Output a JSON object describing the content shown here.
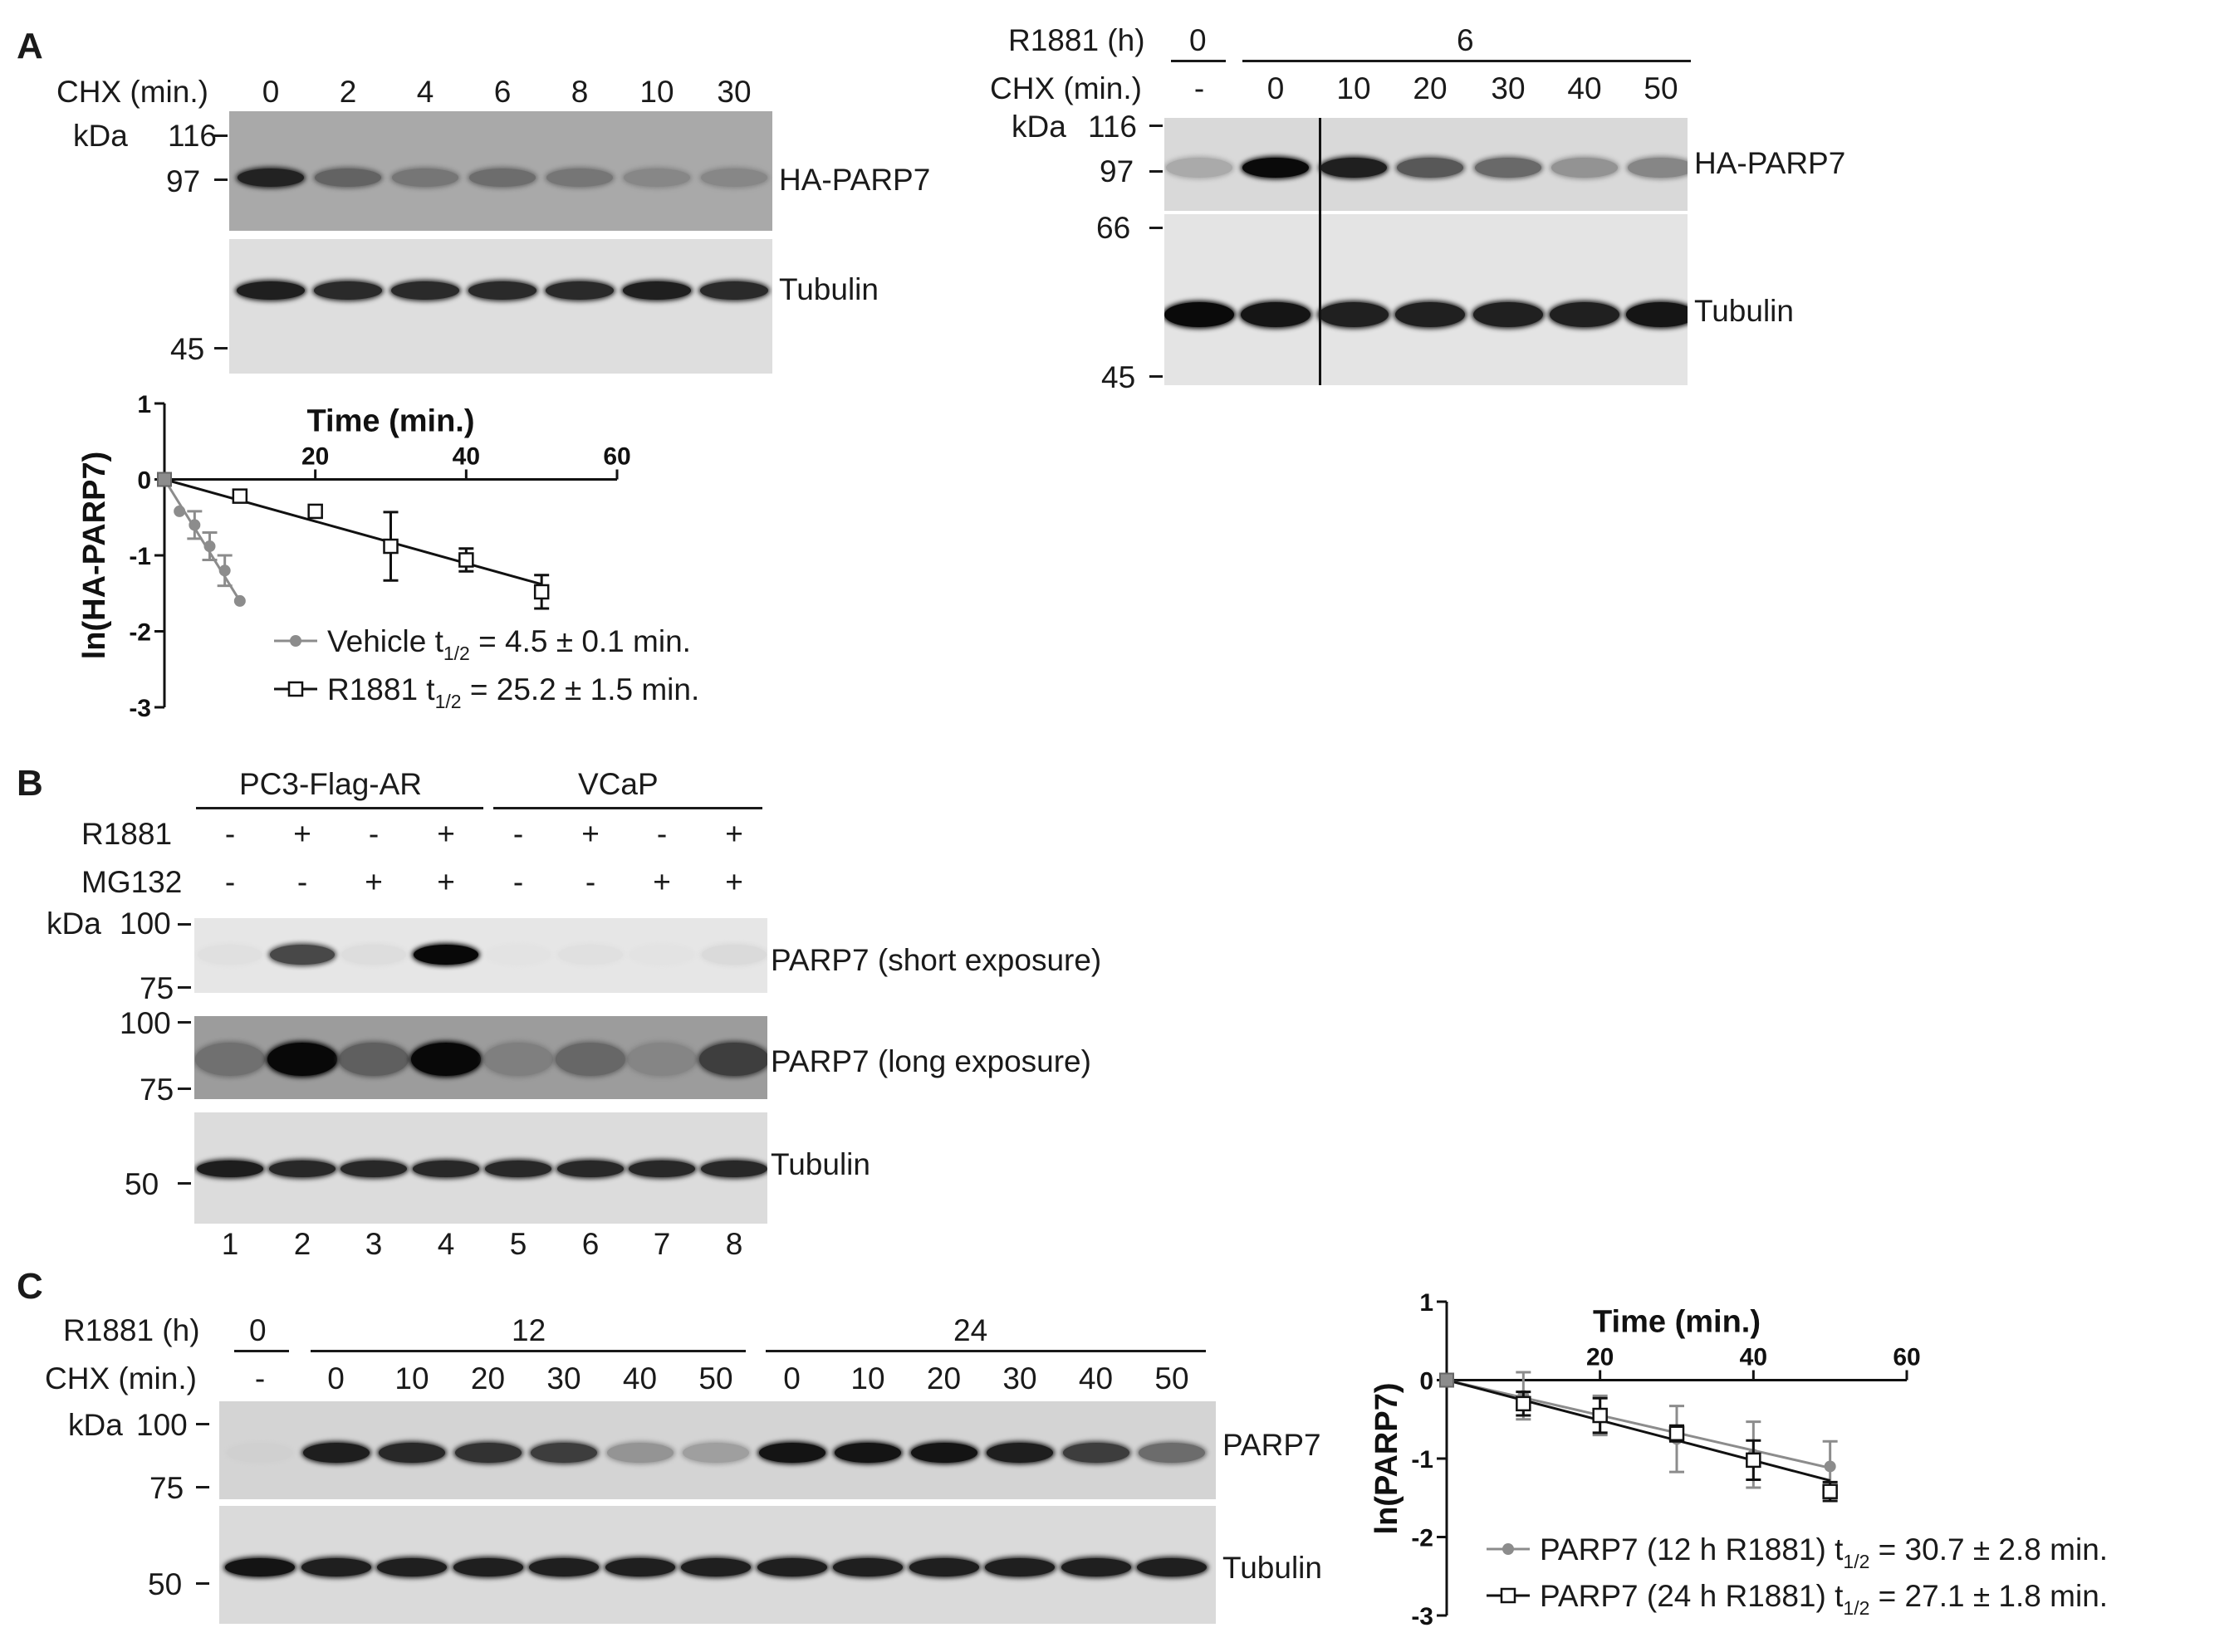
{
  "panel_labels": [
    "A",
    "B",
    "C"
  ],
  "panelA": {
    "left_blot": {
      "treatment_label": "CHX (min.)",
      "lanes": [
        "0",
        "2",
        "4",
        "6",
        "8",
        "10",
        "30"
      ],
      "kda_label": "kDa",
      "markers": [
        "116",
        "97",
        "45"
      ],
      "band_labels": [
        "HA-PARP7",
        "Tubulin"
      ],
      "parp7_intensity": [
        0.85,
        0.55,
        0.45,
        0.5,
        0.45,
        0.35,
        0.35
      ],
      "tubulin_intensity": [
        0.9,
        0.85,
        0.85,
        0.85,
        0.85,
        0.9,
        0.85
      ]
    },
    "right_blot": {
      "r1881_label": "R1881 (h)",
      "r1881_groups": [
        "0",
        "6"
      ],
      "treatment_label": "CHX (min.)",
      "lanes": [
        "-",
        "0",
        "10",
        "20",
        "30",
        "40",
        "50"
      ],
      "kda_label": "kDa",
      "markers": [
        "116",
        "97",
        "66",
        "45"
      ],
      "band_labels": [
        "HA-PARP7",
        "Tubulin"
      ],
      "parp7_intensity": [
        0.35,
        1.0,
        0.9,
        0.65,
        0.6,
        0.45,
        0.5
      ],
      "tubulin_intensity": [
        1.0,
        0.95,
        0.9,
        0.9,
        0.9,
        0.9,
        0.95
      ]
    }
  },
  "chartA": {
    "chart_data": {
      "type": "scatter",
      "xlabel": "Time (min.)",
      "ylabel": "ln(HA-PARP7)",
      "xlim": [
        0,
        60
      ],
      "ylim": [
        -3,
        1
      ],
      "xticks": [
        "20",
        "40",
        "60"
      ],
      "yticks": [
        "1",
        "0",
        "-1",
        "-2",
        "-3"
      ],
      "legend_position": "bottom-right",
      "series": [
        {
          "name": "Vehicle",
          "legend_prefix": "Vehicle t",
          "legend_sub": "1/2",
          "legend_suffix": " = 4.5 ± 0.1 min.",
          "color": "#8c8c8c",
          "marker": "circle",
          "x": [
            0,
            2,
            4,
            6,
            8,
            10
          ],
          "y": [
            0,
            -0.42,
            -0.6,
            -0.88,
            -1.2,
            -1.6
          ],
          "err": [
            0,
            0,
            0.18,
            0.18,
            0.2,
            0
          ],
          "fit": [
            [
              0,
              0
            ],
            [
              10,
              -1.6
            ]
          ]
        },
        {
          "name": "R1881",
          "legend_prefix": "R1881 t",
          "legend_sub": "1/2",
          "legend_suffix": " = 25.2 ± 1.5 min.",
          "color": "#111111",
          "marker": "square",
          "x": [
            0,
            10,
            20,
            30,
            40,
            50
          ],
          "y": [
            0,
            -0.22,
            -0.42,
            -0.88,
            -1.06,
            -1.48
          ],
          "err": [
            0,
            0,
            0.08,
            0.45,
            0.15,
            0.22
          ],
          "fit": [
            [
              0,
              0
            ],
            [
              50,
              -1.38
            ]
          ]
        }
      ]
    }
  },
  "panelB": {
    "groups": [
      "PC3-Flag-AR",
      "VCaP"
    ],
    "row_labels": [
      "R1881",
      "MG132"
    ],
    "r1881": [
      "-",
      "+",
      "-",
      "+",
      "-",
      "+",
      "-",
      "+"
    ],
    "mg132": [
      "-",
      "-",
      "+",
      "+",
      "-",
      "-",
      "+",
      "+"
    ],
    "kda_label": "kDa",
    "short_markers": [
      "100",
      "75"
    ],
    "long_markers": [
      "100",
      "75"
    ],
    "tub_markers": [
      "50"
    ],
    "band_labels": [
      "PARP7 (short exposure)",
      "PARP7 (long exposure)",
      "Tubulin"
    ],
    "lane_numbers": [
      "1",
      "2",
      "3",
      "4",
      "5",
      "6",
      "7",
      "8"
    ],
    "short_intensity": [
      0.08,
      0.75,
      0.12,
      1.0,
      0.05,
      0.08,
      0.05,
      0.15
    ],
    "long_intensity": [
      0.45,
      1.0,
      0.55,
      1.0,
      0.35,
      0.5,
      0.3,
      0.7
    ],
    "tubulin_intensity": [
      0.9,
      0.85,
      0.85,
      0.85,
      0.85,
      0.85,
      0.85,
      0.85
    ]
  },
  "panelC": {
    "blot": {
      "r1881_label": "R1881 (h)",
      "r1881_groups": [
        "0",
        "12",
        "24"
      ],
      "treatment_label": "CHX (min.)",
      "lanes": [
        "-",
        "0",
        "10",
        "20",
        "30",
        "40",
        "50",
        "0",
        "10",
        "20",
        "30",
        "40",
        "50"
      ],
      "kda_label": "kDa",
      "markers": [
        "100",
        "75",
        "50"
      ],
      "band_labels": [
        "PARP7",
        "Tubulin"
      ],
      "parp7_intensity": [
        0.05,
        0.9,
        0.85,
        0.8,
        0.75,
        0.45,
        0.4,
        0.95,
        0.95,
        0.95,
        0.9,
        0.75,
        0.6
      ],
      "tubulin_intensity": [
        0.95,
        0.9,
        0.9,
        0.9,
        0.9,
        0.9,
        0.9,
        0.9,
        0.9,
        0.9,
        0.9,
        0.9,
        0.9
      ]
    }
  },
  "chartC": {
    "chart_data": {
      "type": "scatter",
      "xlabel": "Time (min.)",
      "ylabel": "ln(PARP7)",
      "xlim": [
        0,
        60
      ],
      "ylim": [
        -3,
        1
      ],
      "xticks": [
        "20",
        "40",
        "60"
      ],
      "yticks": [
        "1",
        "0",
        "-1",
        "-2",
        "-3"
      ],
      "legend_position": "bottom-right",
      "series": [
        {
          "name": "PARP7 (12 h R1881)",
          "legend_prefix": "PARP7 (12 h R1881) t",
          "legend_sub": "1/2",
          "legend_suffix": " = 30.7 ± 2.8 min.",
          "color": "#8c8c8c",
          "marker": "circle",
          "x": [
            0,
            10,
            20,
            30,
            40,
            50
          ],
          "y": [
            0,
            -0.2,
            -0.45,
            -0.75,
            -0.95,
            -1.1
          ],
          "err": [
            0,
            0.3,
            0.25,
            0.42,
            0.42,
            0.32
          ],
          "fit": [
            [
              0,
              0
            ],
            [
              50,
              -1.12
            ]
          ]
        },
        {
          "name": "PARP7 (24 h R1881)",
          "legend_prefix": "PARP7 (24 h R1881) t",
          "legend_sub": "1/2",
          "legend_suffix": " = 27.1 ± 1.8 min.",
          "color": "#111111",
          "marker": "square",
          "x": [
            0,
            10,
            20,
            30,
            40,
            50
          ],
          "y": [
            0,
            -0.3,
            -0.45,
            -0.68,
            -1.02,
            -1.42
          ],
          "err": [
            0,
            0.15,
            0.22,
            0.1,
            0.25,
            0.12
          ],
          "fit": [
            [
              0,
              0
            ],
            [
              50,
              -1.28
            ]
          ]
        }
      ]
    }
  }
}
